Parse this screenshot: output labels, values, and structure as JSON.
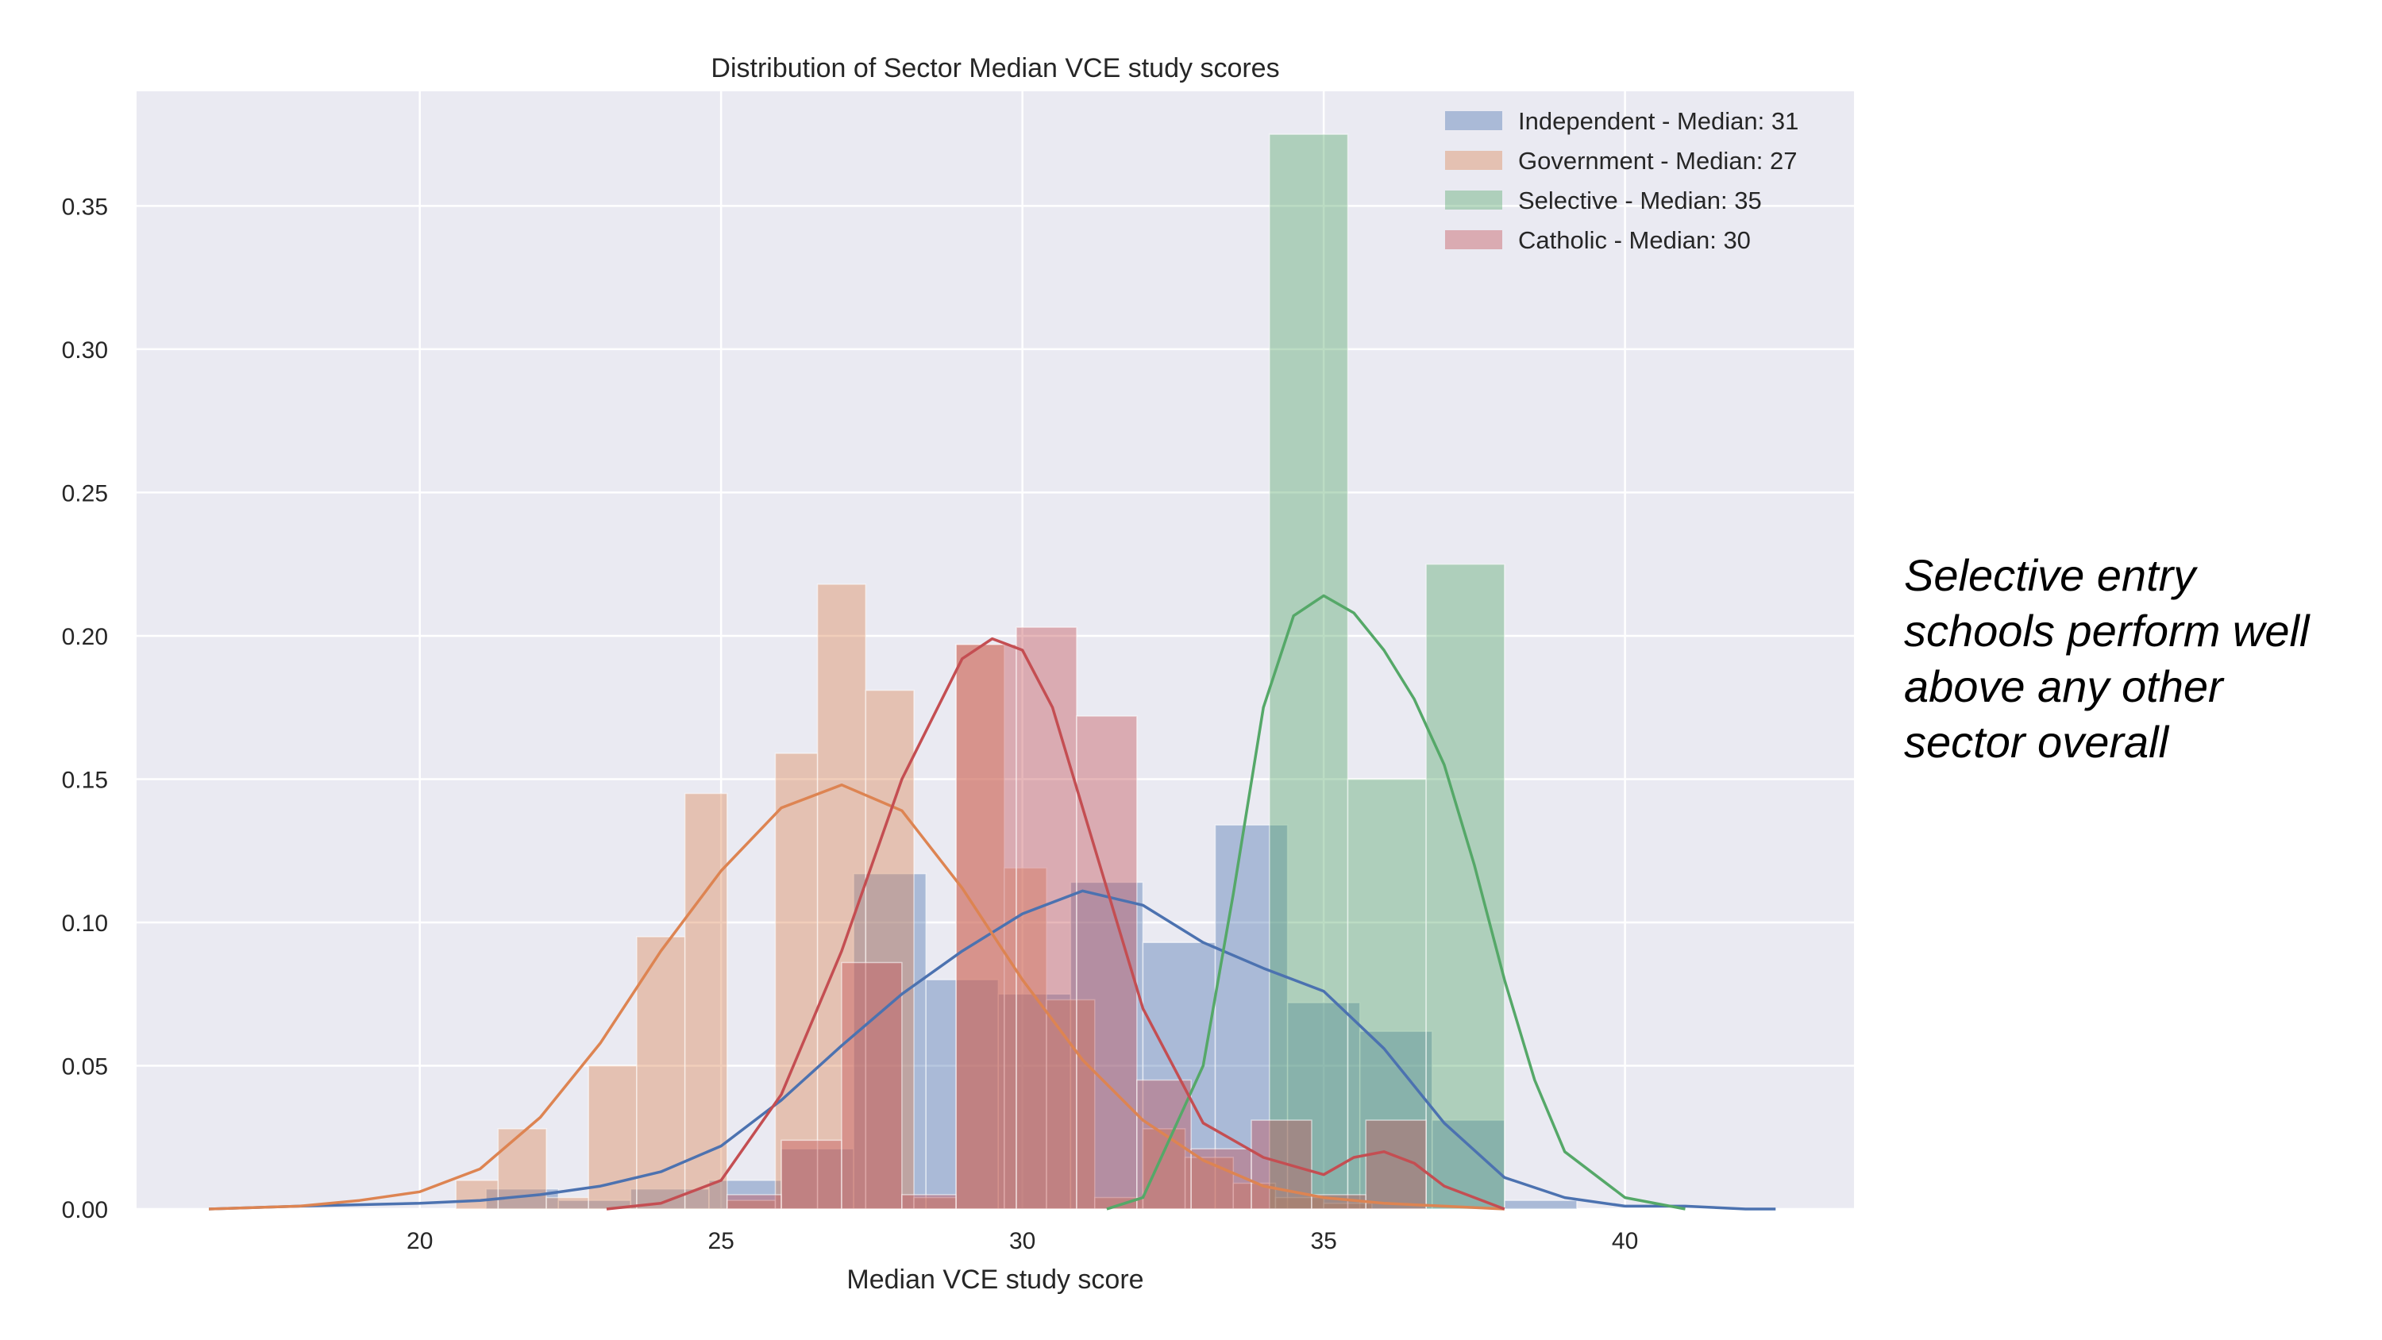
{
  "chart_data": {
    "type": "bar",
    "title": "Distribution of Sector Median VCE study scores",
    "xlabel": "Median VCE study score",
    "ylabel": "",
    "xlim": [
      15.3,
      43.8
    ],
    "ylim": [
      0,
      0.39
    ],
    "xticks": [
      20,
      25,
      30,
      35,
      40
    ],
    "yticks": [
      0.0,
      0.05,
      0.1,
      0.15,
      0.2,
      0.25,
      0.3,
      0.35
    ],
    "grid": true,
    "legend_position": "top-right",
    "series": [
      {
        "name": "Independent - Median: 31",
        "color": "#4c72b0",
        "bins": [
          {
            "x0": 21.1,
            "x1": 22.3,
            "y": 0.007
          },
          {
            "x0": 22.3,
            "x1": 23.5,
            "y": 0.003
          },
          {
            "x0": 23.5,
            "x1": 24.8,
            "y": 0.007
          },
          {
            "x0": 24.8,
            "x1": 26.0,
            "y": 0.01
          },
          {
            "x0": 26.0,
            "x1": 27.2,
            "y": 0.021
          },
          {
            "x0": 27.2,
            "x1": 28.4,
            "y": 0.117
          },
          {
            "x0": 28.4,
            "x1": 29.6,
            "y": 0.08
          },
          {
            "x0": 29.6,
            "x1": 30.8,
            "y": 0.075
          },
          {
            "x0": 30.8,
            "x1": 32.0,
            "y": 0.114
          },
          {
            "x0": 32.0,
            "x1": 33.2,
            "y": 0.093
          },
          {
            "x0": 33.2,
            "x1": 34.4,
            "y": 0.134
          },
          {
            "x0": 34.4,
            "x1": 35.6,
            "y": 0.072
          },
          {
            "x0": 35.6,
            "x1": 36.8,
            "y": 0.062
          },
          {
            "x0": 36.8,
            "x1": 38.0,
            "y": 0.031
          },
          {
            "x0": 38.0,
            "x1": 39.2,
            "y": 0.003
          }
        ],
        "kde": {
          "x": [
            16.5,
            18,
            20,
            21,
            22,
            23,
            24,
            25,
            26,
            27,
            28,
            29,
            30,
            31,
            32,
            33,
            34,
            35,
            36,
            37,
            38,
            39,
            40,
            41,
            42,
            42.5
          ],
          "y": [
            0.0,
            0.001,
            0.002,
            0.003,
            0.005,
            0.008,
            0.013,
            0.022,
            0.038,
            0.057,
            0.075,
            0.09,
            0.103,
            0.111,
            0.106,
            0.093,
            0.084,
            0.076,
            0.056,
            0.03,
            0.011,
            0.004,
            0.001,
            0.001,
            0.0,
            0.0
          ]
        }
      },
      {
        "name": "Government - Median: 27",
        "color": "#dd8452",
        "bins": [
          {
            "x0": 20.6,
            "x1": 21.3,
            "y": 0.01
          },
          {
            "x0": 21.3,
            "x1": 22.1,
            "y": 0.028
          },
          {
            "x0": 22.1,
            "x1": 22.8,
            "y": 0.004
          },
          {
            "x0": 22.8,
            "x1": 23.6,
            "y": 0.05
          },
          {
            "x0": 23.6,
            "x1": 24.4,
            "y": 0.095
          },
          {
            "x0": 24.4,
            "x1": 25.1,
            "y": 0.145
          },
          {
            "x0": 25.1,
            "x1": 25.9,
            "y": 0.003
          },
          {
            "x0": 25.9,
            "x1": 26.6,
            "y": 0.159
          },
          {
            "x0": 26.6,
            "x1": 27.4,
            "y": 0.218
          },
          {
            "x0": 27.4,
            "x1": 28.2,
            "y": 0.181
          },
          {
            "x0": 28.2,
            "x1": 28.9,
            "y": 0.004
          },
          {
            "x0": 28.9,
            "x1": 29.7,
            "y": 0.197
          },
          {
            "x0": 29.7,
            "x1": 30.4,
            "y": 0.119
          },
          {
            "x0": 30.4,
            "x1": 31.2,
            "y": 0.073
          },
          {
            "x0": 31.2,
            "x1": 32.0,
            "y": 0.004
          },
          {
            "x0": 32.0,
            "x1": 32.7,
            "y": 0.028
          },
          {
            "x0": 32.7,
            "x1": 33.5,
            "y": 0.018
          },
          {
            "x0": 33.5,
            "x1": 34.2,
            "y": 0.009
          },
          {
            "x0": 34.2,
            "x1": 35.0,
            "y": 0.004
          },
          {
            "x0": 35.0,
            "x1": 35.8,
            "y": 0.002
          }
        ],
        "kde": {
          "x": [
            16.5,
            18,
            19,
            20,
            21,
            22,
            23,
            24,
            25,
            26,
            27,
            28,
            29,
            30,
            31,
            32,
            33,
            34,
            35,
            36,
            37,
            38
          ],
          "y": [
            0.0,
            0.001,
            0.003,
            0.006,
            0.014,
            0.032,
            0.058,
            0.09,
            0.118,
            0.14,
            0.148,
            0.139,
            0.112,
            0.08,
            0.052,
            0.031,
            0.017,
            0.008,
            0.004,
            0.002,
            0.001,
            0.0
          ]
        }
      },
      {
        "name": "Selective - Median: 35",
        "color": "#55a868",
        "bins": [
          {
            "x0": 34.1,
            "x1": 35.4,
            "y": 0.375
          },
          {
            "x0": 35.4,
            "x1": 36.7,
            "y": 0.15
          },
          {
            "x0": 36.7,
            "x1": 38.0,
            "y": 0.225
          }
        ],
        "kde": {
          "x": [
            31.4,
            32,
            33,
            33.5,
            34,
            34.5,
            35,
            35.5,
            36,
            36.5,
            37,
            37.5,
            38,
            38.5,
            39,
            40,
            41
          ],
          "y": [
            0.0,
            0.004,
            0.05,
            0.11,
            0.175,
            0.207,
            0.214,
            0.208,
            0.195,
            0.178,
            0.155,
            0.12,
            0.08,
            0.045,
            0.02,
            0.004,
            0.0
          ]
        }
      },
      {
        "name": "Catholic - Median: 30",
        "color": "#c44e52",
        "bins": [
          {
            "x0": 25.1,
            "x1": 26.0,
            "y": 0.005
          },
          {
            "x0": 26.0,
            "x1": 27.0,
            "y": 0.024
          },
          {
            "x0": 27.0,
            "x1": 28.0,
            "y": 0.086
          },
          {
            "x0": 28.0,
            "x1": 28.9,
            "y": 0.005
          },
          {
            "x0": 28.9,
            "x1": 29.9,
            "y": 0.197
          },
          {
            "x0": 29.9,
            "x1": 30.9,
            "y": 0.203
          },
          {
            "x0": 30.9,
            "x1": 31.9,
            "y": 0.172
          },
          {
            "x0": 31.9,
            "x1": 32.8,
            "y": 0.045
          },
          {
            "x0": 32.8,
            "x1": 33.8,
            "y": 0.021
          },
          {
            "x0": 33.8,
            "x1": 34.8,
            "y": 0.031
          },
          {
            "x0": 34.8,
            "x1": 35.7,
            "y": 0.005
          },
          {
            "x0": 35.7,
            "x1": 36.7,
            "y": 0.031
          }
        ],
        "kde": {
          "x": [
            23.1,
            24,
            25,
            26,
            27,
            28,
            29,
            29.5,
            30,
            30.5,
            31,
            32,
            33,
            34,
            35,
            35.5,
            36,
            36.5,
            37,
            38
          ],
          "y": [
            0.0,
            0.002,
            0.01,
            0.04,
            0.09,
            0.15,
            0.192,
            0.199,
            0.195,
            0.175,
            0.14,
            0.07,
            0.03,
            0.018,
            0.012,
            0.018,
            0.02,
            0.016,
            0.008,
            0.0
          ]
        }
      }
    ]
  },
  "annotation": {
    "lines": [
      "Selective entry",
      "schools perform well",
      "above any other",
      "sector overall"
    ]
  }
}
